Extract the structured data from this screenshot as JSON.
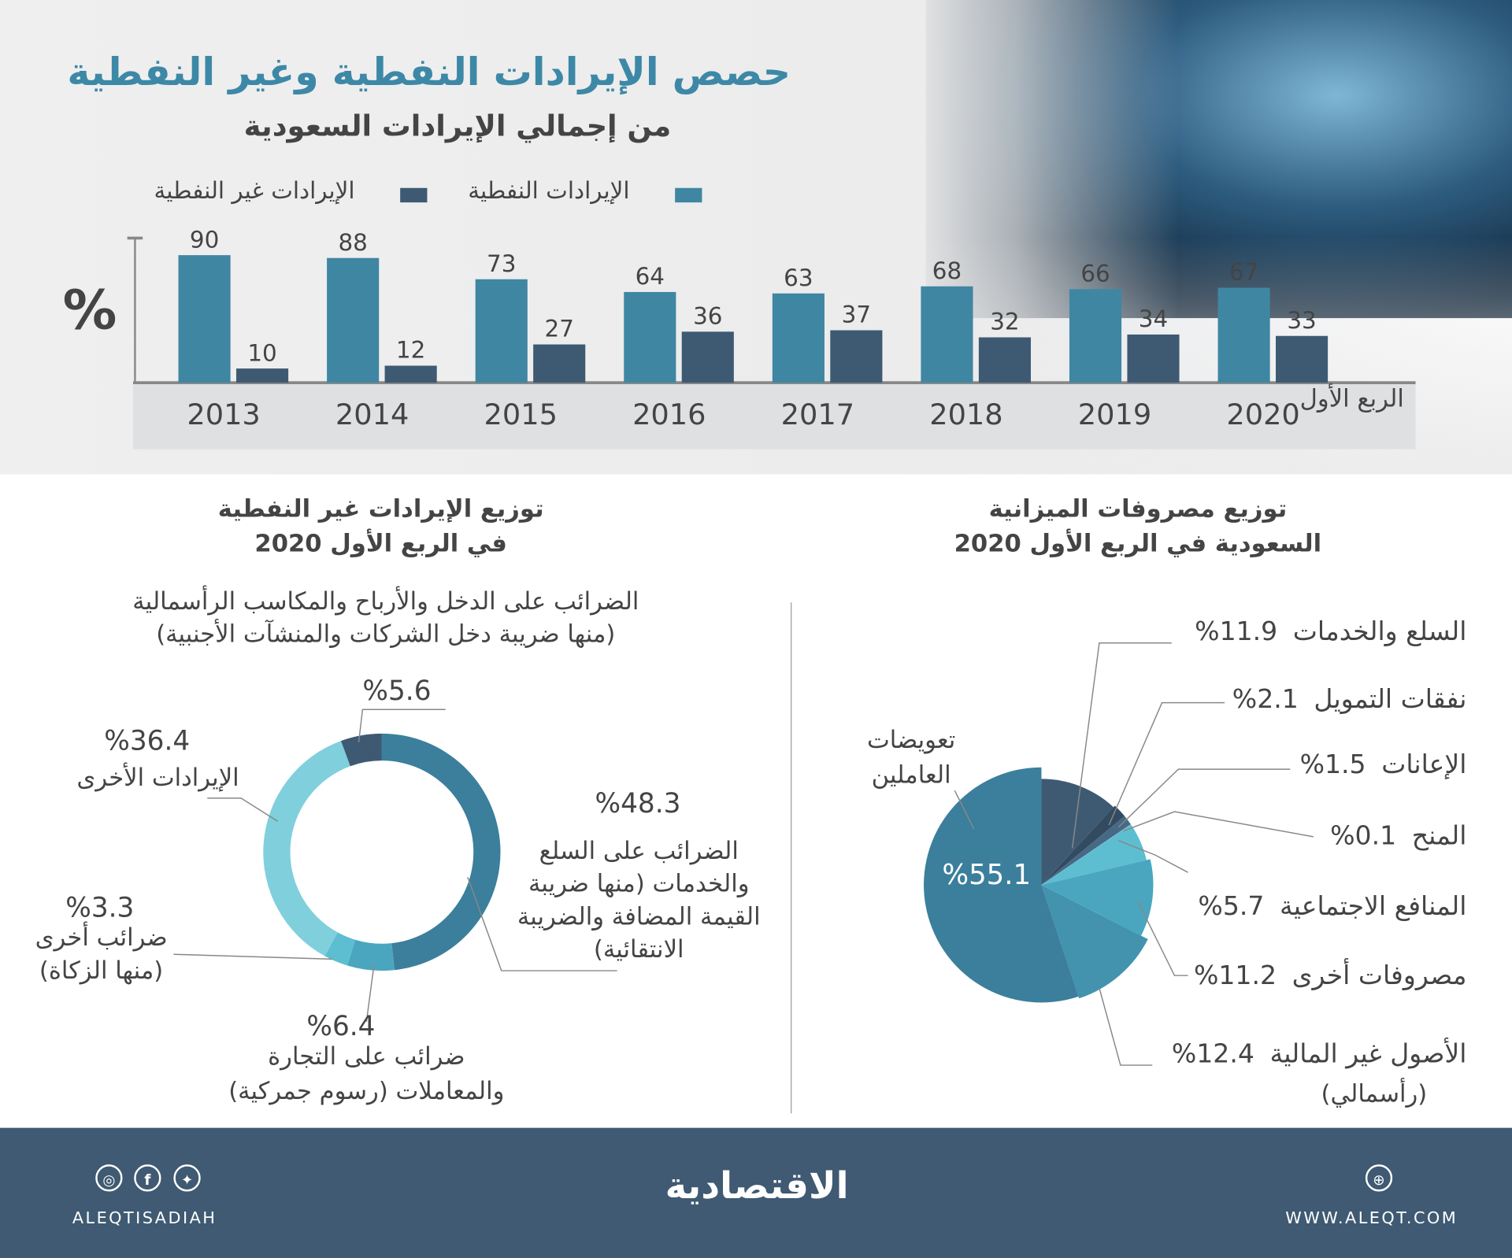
{
  "colors": {
    "oil": "#3f86a3",
    "non_oil": "#3e5a73",
    "title": "#3d88a6",
    "footer": "#3f5a72"
  },
  "header": {
    "title": "حصص الإيرادات النفطية وغير النفطية",
    "subtitle": "من إجمالي الإيرادات السعودية"
  },
  "chart_data": [
    {
      "type": "bar",
      "title": "حصص الإيرادات النفطية وغير النفطية",
      "subtitle": "من إجمالي الإيرادات السعودية",
      "ylabel": "%",
      "ylim": [
        0,
        100
      ],
      "grid": false,
      "legend_placement": "top",
      "categories": [
        "2013",
        "2014",
        "2015",
        "2016",
        "2017",
        "2018",
        "2019",
        "2020"
      ],
      "category_note": "الربع الأول",
      "series": [
        {
          "name": "الإيرادات النفطية",
          "color": "#3f86a3",
          "values": [
            90,
            88,
            73,
            64,
            63,
            68,
            66,
            67
          ]
        },
        {
          "name": "الإيرادات غير النفطية",
          "color": "#3e5a73",
          "values": [
            10,
            12,
            27,
            36,
            37,
            32,
            34,
            33
          ]
        }
      ]
    },
    {
      "type": "pie",
      "donut": true,
      "title": "توزيع الإيرادات غير النفطية في الربع الأول 2020",
      "slices": [
        {
          "label": "الضرائب على السلع والخدمات (منها ضريبة القيمة المضافة والضريبة الانتقائية)",
          "value": 48.3,
          "text": "%48.3",
          "color": "#3b7f9c"
        },
        {
          "label": "ضرائب على التجارة والمعاملات (رسوم جمركية)",
          "value": 6.4,
          "text": "%6.4",
          "color": "#4aa6bf"
        },
        {
          "label": "ضرائب أخرى (منها الزكاة)",
          "value": 3.3,
          "text": "%3.3",
          "color": "#5dbdd1"
        },
        {
          "label": "الإيرادات الأخرى",
          "value": 36.4,
          "text": "%36.4",
          "color": "#80cfdd"
        },
        {
          "label": "الضرائب على الدخل والأرباح والمكاسب الرأسمالية (منها ضريبة دخل الشركات والمنشآت الأجنبية)",
          "value": 5.6,
          "text": "%5.6",
          "color": "#3e5a73"
        }
      ]
    },
    {
      "type": "pie",
      "title": "توزيع مصروفات الميزانية السعودية في الربع الأول 2020",
      "slices": [
        {
          "label": "السلع والخدمات",
          "value": 11.9,
          "text": "%11.9",
          "color": "#3e5a73"
        },
        {
          "label": "نفقات التمويل",
          "value": 2.1,
          "text": "%2.1",
          "color": "#334b60"
        },
        {
          "label": "الإعانات",
          "value": 1.5,
          "text": "%1.5",
          "color": "#466a84"
        },
        {
          "label": "المنح",
          "value": 0.1,
          "text": "%0.1",
          "color": "#6bb7c8"
        },
        {
          "label": "المنافع الاجتماعية",
          "value": 5.7,
          "text": "%5.7",
          "color": "#5dbdd1"
        },
        {
          "label": "مصروفات أخرى",
          "value": 11.2,
          "text": "%11.2",
          "color": "#4aa6bf"
        },
        {
          "label": "الأصول غير المالية (رأسمالي)",
          "value": 12.4,
          "text": "%12.4",
          "color": "#4393ae"
        },
        {
          "label": "تعويضات العاملين",
          "value": 55.1,
          "text": "%55.1",
          "color": "#3b7f9c"
        }
      ]
    }
  ],
  "donut_section": {
    "title_line1": "توزيع الإيرادات غير النفطية",
    "title_line2": "في الربع الأول 2020",
    "income_line1": "الضرائب على الدخل والأرباح والمكاسب الرأسمالية",
    "income_line2": "(منها ضريبة دخل الشركات والمنشآت الأجنبية)",
    "goods_line1": "الضرائب على السلع",
    "goods_line2": "والخدمات (منها ضريبة",
    "goods_line3": "القيمة المضافة والضريبة",
    "goods_line4": "الانتقائية)",
    "trade_line1": "ضرائب على التجارة",
    "trade_line2": "والمعاملات (رسوم جمركية)",
    "other_tax_line1": "ضرائب أخرى",
    "other_tax_line2": "(منها الزكاة)",
    "other_rev": "الإيرادات الأخرى"
  },
  "pie_section": {
    "title_line1": "توزيع مصروفات الميزانية",
    "title_line2": "السعودية في الربع الأول 2020",
    "comp_line1": "تعويضات",
    "comp_line2": "العاملين",
    "assets_line1": "الأصول غير المالية",
    "assets_line2": "(رأسمالي)"
  },
  "footer": {
    "brand": "الاقتصادية",
    "handle": "ALEQTISADIAH",
    "website": "WWW.ALEQT.COM",
    "icons": [
      "instagram-icon",
      "facebook-icon",
      "twitter-icon",
      "globe-icon"
    ]
  }
}
